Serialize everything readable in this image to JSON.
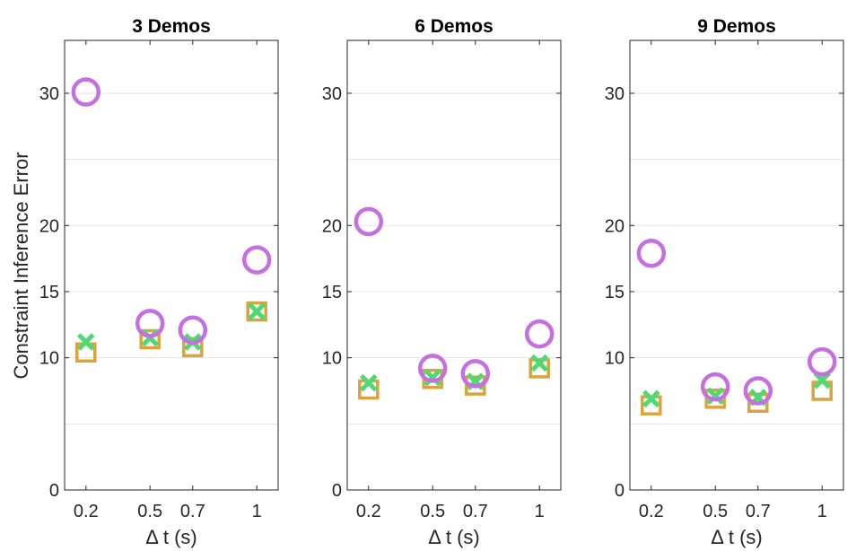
{
  "chart_data": {
    "type": "scatter",
    "ylabel": "Constraint Inference Error",
    "xlabel": "Δ t (s)",
    "x": [
      0.2,
      0.5,
      0.7,
      1
    ],
    "x_tick_labels": [
      "0.2",
      "0.5",
      "0.7",
      "1"
    ],
    "y_ticks": [
      0,
      10,
      15,
      20,
      30
    ],
    "y_tick_labels": [
      "0",
      "10",
      "15",
      "20",
      "30"
    ],
    "xlim": [
      0.1,
      1.1
    ],
    "ylim": [
      0,
      34
    ],
    "grid": "horizontal",
    "colors": {
      "circle": "#c56fe0",
      "cross": "#4fd873",
      "square": "#dca33c"
    },
    "panels": [
      {
        "title": "3 Demos",
        "series": [
          {
            "marker": "circle",
            "values": [
              30.1,
              12.6,
              12.1,
              17.4
            ]
          },
          {
            "marker": "cross",
            "values": [
              11.2,
              11.5,
              11.2,
              13.5
            ]
          },
          {
            "marker": "square",
            "values": [
              10.4,
              11.4,
              10.8,
              13.5
            ]
          }
        ]
      },
      {
        "title": "6 Demos",
        "series": [
          {
            "marker": "circle",
            "values": [
              20.3,
              9.2,
              8.8,
              11.8
            ]
          },
          {
            "marker": "cross",
            "values": [
              8.1,
              8.5,
              8.2,
              9.6
            ]
          },
          {
            "marker": "square",
            "values": [
              7.6,
              8.4,
              7.9,
              9.2
            ]
          }
        ]
      },
      {
        "title": "9 Demos",
        "series": [
          {
            "marker": "circle",
            "values": [
              17.9,
              7.8,
              7.5,
              9.7
            ]
          },
          {
            "marker": "cross",
            "values": [
              6.9,
              7.1,
              7.0,
              8.3
            ]
          },
          {
            "marker": "square",
            "values": [
              6.4,
              6.9,
              6.6,
              7.5
            ]
          }
        ]
      }
    ]
  }
}
